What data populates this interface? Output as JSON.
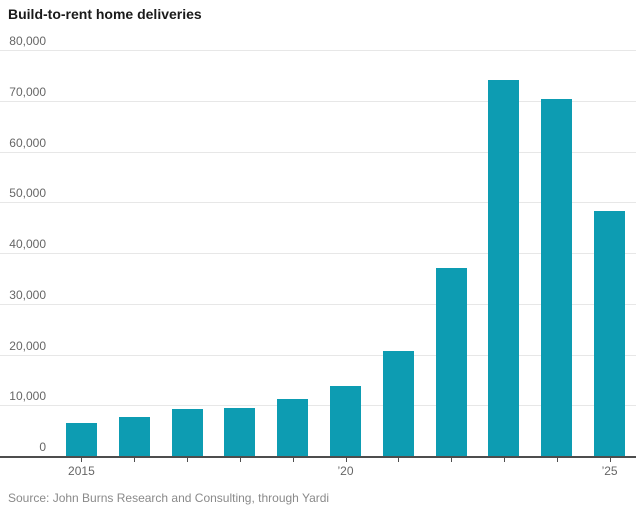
{
  "title": "Build-to-rent home deliveries",
  "source": "Source: John Burns Research and Consulting, through Yardi",
  "colors": {
    "bar": "#0d9cb2",
    "grid": "#e7e7e7",
    "axis": "#4d4d4d",
    "title": "#1a1a1a",
    "label": "#666666",
    "source": "#8a8a8a",
    "background": "#ffffff"
  },
  "chart_data": {
    "type": "bar",
    "title": "Build-to-rent home deliveries",
    "categories": [
      "2015",
      "2016",
      "2017",
      "2018",
      "2019",
      "2020",
      "2021",
      "2022",
      "2023",
      "2024",
      "2025"
    ],
    "values": [
      6500,
      7700,
      9200,
      9500,
      11300,
      13800,
      20700,
      37000,
      74000,
      70400,
      48300
    ],
    "xlabel": "",
    "ylabel": "",
    "ylim": [
      0,
      80000
    ],
    "ytick_step": 10000,
    "ytick_labels": [
      "0",
      "10,000",
      "20,000",
      "30,000",
      "40,000",
      "50,000",
      "60,000",
      "70,000",
      "80,000"
    ],
    "xtick_labels": [
      {
        "index": 0,
        "label": "2015"
      },
      {
        "index": 5,
        "label": "’20"
      },
      {
        "index": 10,
        "label": "’25"
      }
    ],
    "grid": "horizontal",
    "legend": "none"
  }
}
